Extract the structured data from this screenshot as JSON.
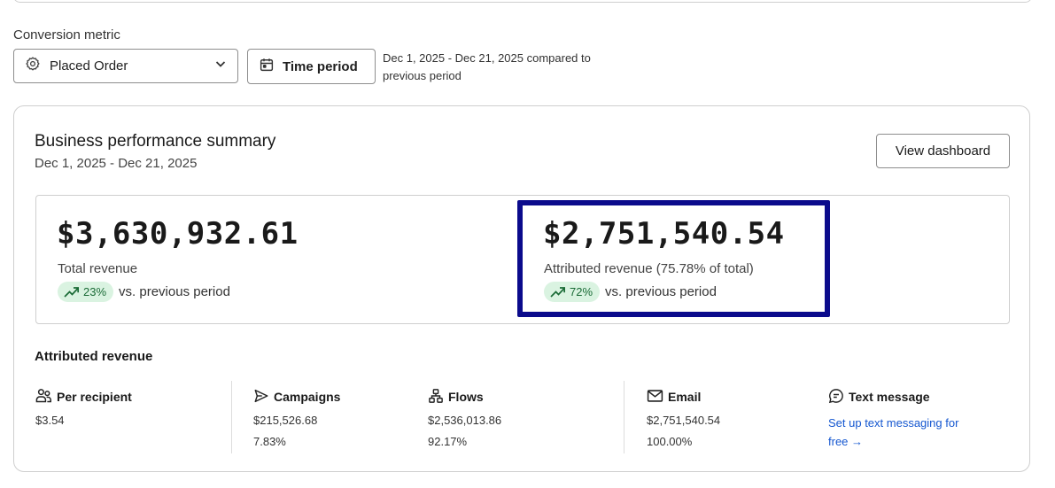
{
  "conversion_metric": {
    "label": "Conversion metric",
    "selected": "Placed Order"
  },
  "time_period": {
    "button_label": "Time period",
    "note": "Dec 1, 2025 - Dec 21, 2025 compared to previous period"
  },
  "summary": {
    "title": "Business performance summary",
    "dates": "Dec 1, 2025 - Dec 21, 2025",
    "view_dashboard_label": "View dashboard",
    "total": {
      "amount": "$3,630,932.61",
      "label": "Total revenue",
      "change": "23%",
      "comparison": "vs. previous period"
    },
    "attributed": {
      "amount": "$2,751,540.54",
      "label": "Attributed revenue (75.78% of total)",
      "change": "72%",
      "comparison": "vs. previous period"
    }
  },
  "attributed_revenue": {
    "title": "Attributed revenue",
    "columns": [
      {
        "icon": "users-icon",
        "label": "Per recipient",
        "value": "$3.54",
        "percent": ""
      },
      {
        "icon": "send-icon",
        "label": "Campaigns",
        "value": "$215,526.68",
        "percent": "7.83%"
      },
      {
        "icon": "flows-icon",
        "label": "Flows",
        "value": "$2,536,013.86",
        "percent": "92.17%"
      },
      {
        "icon": "email-icon",
        "label": "Email",
        "value": "$2,751,540.54",
        "percent": "100.00%"
      },
      {
        "icon": "message-icon",
        "label": "Text message",
        "link": "Set up text messaging for free →"
      }
    ]
  },
  "colors": {
    "highlight_border": "#0b0b8c",
    "positive_badge_bg": "#daf3e1",
    "positive_badge_text": "#1a6b36",
    "link": "#1557d0"
  }
}
